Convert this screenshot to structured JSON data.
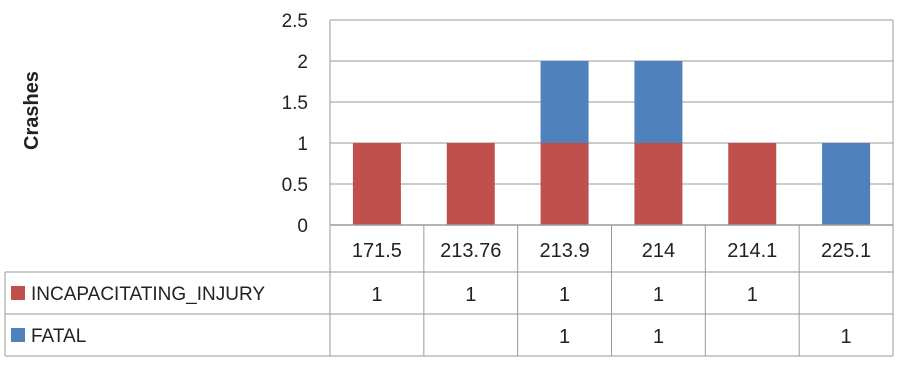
{
  "chart_data": {
    "type": "bar",
    "stacked": true,
    "ylabel": "Crashes",
    "ylim": [
      0,
      2.5
    ],
    "yticks": [
      "0",
      "0.5",
      "1",
      "1.5",
      "2",
      "2.5"
    ],
    "categories": [
      "171.5",
      "213.76",
      "213.9",
      "214",
      "214.1",
      "225.1"
    ],
    "series": [
      {
        "name": "INCAPACITATING_INJURY",
        "color": "#c0504d",
        "values": [
          1,
          1,
          1,
          1,
          1,
          0
        ],
        "table_cells": [
          "1",
          "1",
          "1",
          "1",
          "1",
          ""
        ]
      },
      {
        "name": "FATAL",
        "color": "#4f81bd",
        "values": [
          0,
          0,
          1,
          1,
          0,
          1
        ],
        "table_cells": [
          "",
          "",
          "1",
          "1",
          "",
          "1"
        ]
      }
    ],
    "grid": true,
    "legend": "data-table"
  }
}
